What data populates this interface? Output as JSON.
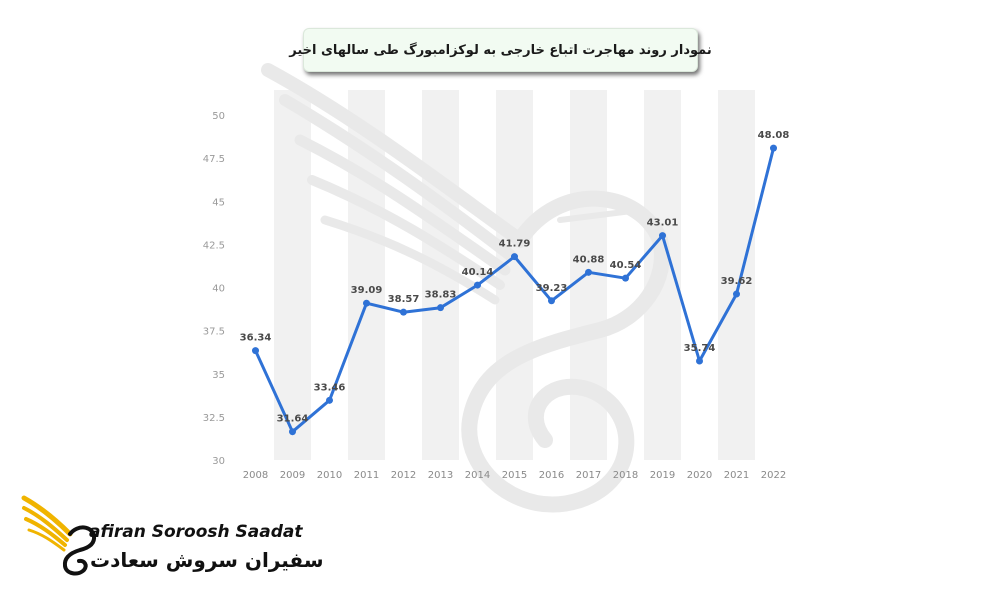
{
  "title": "نمودار روند مهاجرت اتباع خارجی به لوکزامبورگ طی سالهای اخیر",
  "brand": {
    "name_en": "afiran Soroosh Saadat",
    "name_fa": "سفیران سروش سعادت"
  },
  "colors": {
    "line": "#2f72d6",
    "band": "#f1f1f1",
    "logo_accent": "#f0b400"
  },
  "chart_data": {
    "type": "line",
    "title": "نمودار روند مهاجرت اتباع خارجی به لوکزامبورگ طی سالهای اخیر",
    "xlabel": "",
    "ylabel": "",
    "categories": [
      "2008",
      "2009",
      "2010",
      "2011",
      "2012",
      "2013",
      "2014",
      "2015",
      "2016",
      "2017",
      "2018",
      "2019",
      "2020",
      "2021",
      "2022"
    ],
    "series": [
      {
        "values": [
          36.34,
          31.64,
          33.46,
          39.09,
          38.57,
          38.83,
          40.14,
          41.79,
          39.23,
          40.88,
          40.54,
          43.01,
          35.74,
          39.62,
          48.08
        ]
      }
    ],
    "data_labels": [
      "36.34",
      "31.64",
      "33.46",
      "39.09",
      "38.57",
      "38.83",
      "40.14",
      "41.79",
      "39.23",
      "40.88",
      "40.54",
      "43.01",
      "35.74",
      "39.62",
      "48.08"
    ],
    "y_ticks": [
      "30",
      "32.5",
      "35",
      "37.5",
      "40",
      "42.5",
      "45",
      "47.5",
      "50"
    ],
    "ylim": [
      30,
      50
    ],
    "grid": true,
    "legend": "none"
  }
}
